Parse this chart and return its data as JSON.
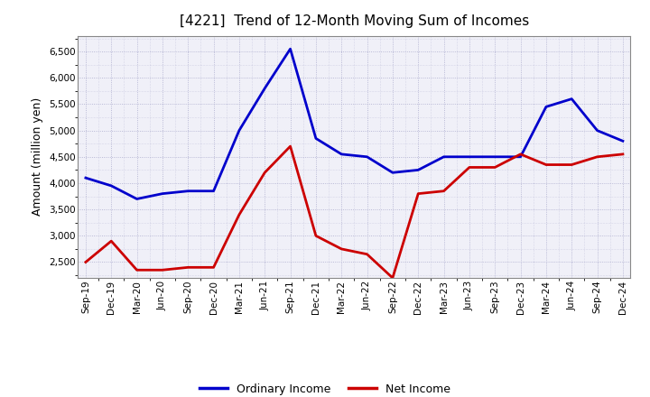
{
  "title": "[4221]  Trend of 12-Month Moving Sum of Incomes",
  "ylabel": "Amount (million yen)",
  "background_color": "#ffffff",
  "plot_bg_color": "#f0f0f8",
  "grid_color": "#aaaacc",
  "labels": [
    "Sep-19",
    "Dec-19",
    "Mar-20",
    "Jun-20",
    "Sep-20",
    "Dec-20",
    "Mar-21",
    "Jun-21",
    "Sep-21",
    "Dec-21",
    "Mar-22",
    "Jun-22",
    "Sep-22",
    "Dec-22",
    "Mar-23",
    "Jun-23",
    "Sep-23",
    "Dec-23",
    "Mar-24",
    "Jun-24",
    "Sep-24",
    "Dec-24"
  ],
  "ordinary_income": [
    4100,
    3950,
    3700,
    3800,
    3850,
    3850,
    5000,
    5800,
    6550,
    4850,
    4550,
    4500,
    4200,
    4250,
    4500,
    4500,
    4500,
    4500,
    5450,
    5600,
    5000,
    4800
  ],
  "net_income": [
    2500,
    2900,
    2350,
    2350,
    2400,
    2400,
    3400,
    4200,
    4700,
    3000,
    2750,
    2650,
    2200,
    3800,
    3850,
    4300,
    4300,
    4550,
    4350,
    4350,
    4500,
    4550
  ],
  "ordinary_color": "#0000cc",
  "net_color": "#cc0000",
  "ylim": [
    2200,
    6800
  ],
  "yticks": [
    2500,
    3000,
    3500,
    4000,
    4500,
    5000,
    5500,
    6000,
    6500
  ],
  "line_width": 2.0,
  "title_fontsize": 11,
  "tick_fontsize": 7.5,
  "ylabel_fontsize": 9,
  "legend_labels": [
    "Ordinary Income",
    "Net Income"
  ]
}
